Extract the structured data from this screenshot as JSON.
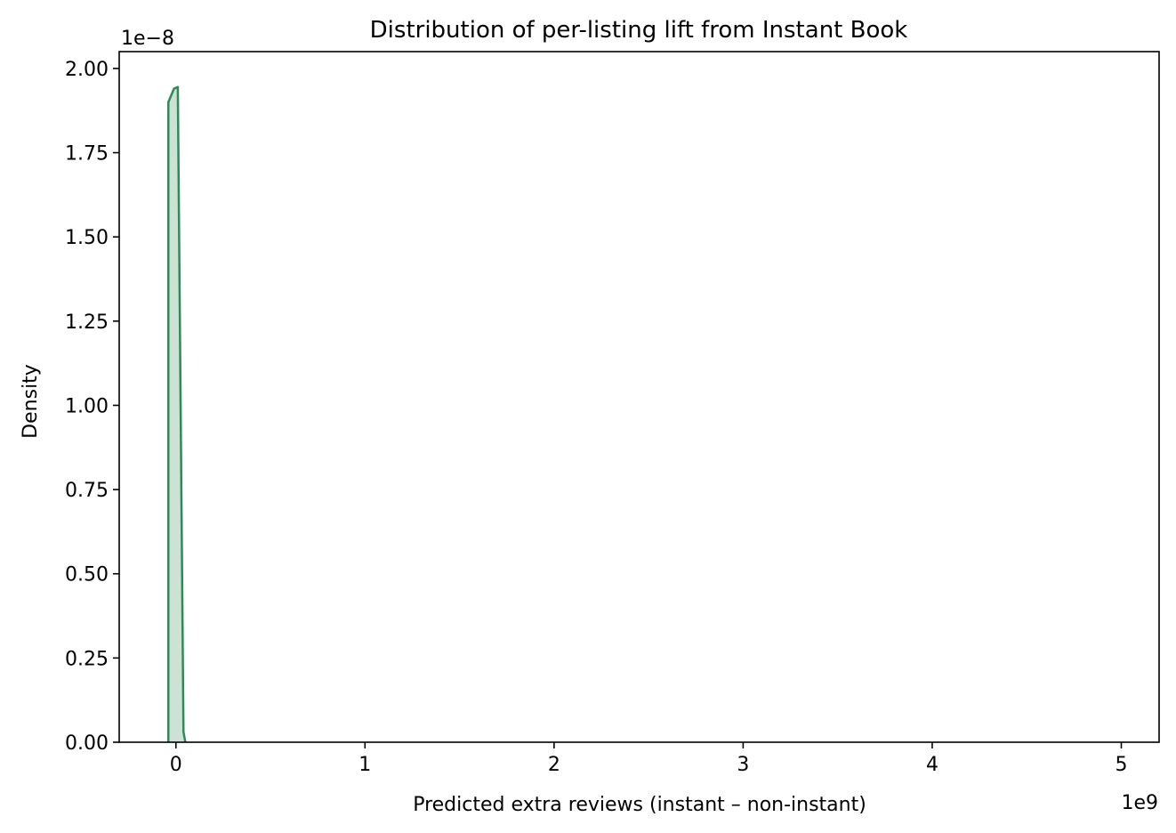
{
  "chart_data": {
    "type": "area",
    "title": "Distribution of per-listing lift from Instant Book",
    "xlabel": "Predicted extra reviews (instant – non-instant)",
    "ylabel": "Density",
    "x_offset_label": "1e9",
    "y_offset_label": "1e−8",
    "xlim": [
      -0.3,
      5.2
    ],
    "ylim": [
      0,
      2.05
    ],
    "xticks": [
      0,
      1,
      2,
      3,
      4,
      5
    ],
    "xtick_labels": [
      "0",
      "1",
      "2",
      "3",
      "4",
      "5"
    ],
    "yticks": [
      0,
      0.25,
      0.5,
      0.75,
      1.0,
      1.25,
      1.5,
      1.75,
      2.0
    ],
    "ytick_labels": [
      "0.00",
      "0.25",
      "0.50",
      "0.75",
      "1.00",
      "1.25",
      "1.50",
      "1.75",
      "2.00"
    ],
    "grid": false,
    "series": [
      {
        "x": [
          -0.04,
          -0.04,
          -0.01,
          0.01,
          0.04,
          0.05
        ],
        "y": [
          0.0,
          1.9,
          1.94,
          1.945,
          0.03,
          0.0
        ]
      }
    ],
    "colors": {
      "line": "#2e8b57",
      "fill": "#2e8b57"
    }
  }
}
